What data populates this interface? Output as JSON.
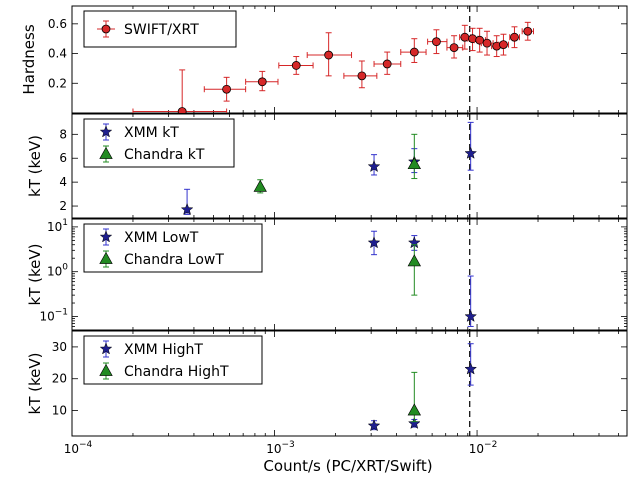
{
  "figure": {
    "xlabel": "Count/s (PC/XRT/Swift)",
    "x_range": [
      0.0001,
      0.055
    ],
    "x_scale": "log",
    "x_ticks": [
      {
        "value": 0.0001,
        "base": "10",
        "exp": "−4"
      },
      {
        "value": 0.001,
        "base": "10",
        "exp": "−3"
      },
      {
        "value": 0.01,
        "base": "10",
        "exp": "−2"
      }
    ],
    "vline_x": 0.0092,
    "colors": {
      "swift": "#d62728",
      "xmm": "#1f1f8f",
      "xmm_err": "#3333cc",
      "chandra": "#228b22",
      "axis": "#000000"
    }
  },
  "chart_data": [
    {
      "type": "scatter",
      "ylabel": "Hardness",
      "yscale": "linear",
      "ylim": [
        0.0,
        0.72
      ],
      "yticks": [
        "0.2",
        "0.4",
        "0.6"
      ],
      "ytick_values": [
        0.2,
        0.4,
        0.6
      ],
      "legend_position": "top-left",
      "series": [
        {
          "name": "SWIFT/XRT",
          "marker": "circle",
          "color_key": "swift",
          "points": [
            {
              "x": 0.00035,
              "y": 0.01,
              "xlo": 0.0002,
              "xhi": 0.00058,
              "ylo": 0.01,
              "yhi": 0.29
            },
            {
              "x": 0.00058,
              "y": 0.16,
              "xlo": 0.00045,
              "xhi": 0.00072,
              "ylo": 0.08,
              "yhi": 0.24
            },
            {
              "x": 0.00087,
              "y": 0.21,
              "xlo": 0.00072,
              "xhi": 0.00104,
              "ylo": 0.15,
              "yhi": 0.28
            },
            {
              "x": 0.00128,
              "y": 0.32,
              "xlo": 0.00105,
              "xhi": 0.00155,
              "ylo": 0.26,
              "yhi": 0.38
            },
            {
              "x": 0.00185,
              "y": 0.39,
              "xlo": 0.00145,
              "xhi": 0.0024,
              "ylo": 0.25,
              "yhi": 0.54
            },
            {
              "x": 0.0027,
              "y": 0.25,
              "xlo": 0.0022,
              "xhi": 0.0032,
              "ylo": 0.17,
              "yhi": 0.35
            },
            {
              "x": 0.0036,
              "y": 0.33,
              "xlo": 0.0031,
              "xhi": 0.0042,
              "ylo": 0.26,
              "yhi": 0.41
            },
            {
              "x": 0.0049,
              "y": 0.41,
              "xlo": 0.0042,
              "xhi": 0.0056,
              "ylo": 0.34,
              "yhi": 0.5
            },
            {
              "x": 0.0063,
              "y": 0.48,
              "xlo": 0.0057,
              "xhi": 0.0071,
              "ylo": 0.4,
              "yhi": 0.56
            },
            {
              "x": 0.0077,
              "y": 0.44,
              "xlo": 0.0071,
              "xhi": 0.0085,
              "ylo": 0.37,
              "yhi": 0.52
            },
            {
              "x": 0.0087,
              "y": 0.51,
              "xlo": 0.0082,
              "xhi": 0.0093,
              "ylo": 0.43,
              "yhi": 0.59
            },
            {
              "x": 0.0095,
              "y": 0.5,
              "xlo": 0.009,
              "xhi": 0.0101,
              "ylo": 0.42,
              "yhi": 0.57
            },
            {
              "x": 0.0103,
              "y": 0.49,
              "xlo": 0.0097,
              "xhi": 0.011,
              "ylo": 0.41,
              "yhi": 0.57
            },
            {
              "x": 0.0112,
              "y": 0.47,
              "xlo": 0.0105,
              "xhi": 0.012,
              "ylo": 0.39,
              "yhi": 0.55
            },
            {
              "x": 0.0125,
              "y": 0.45,
              "xlo": 0.0118,
              "xhi": 0.0133,
              "ylo": 0.38,
              "yhi": 0.52
            },
            {
              "x": 0.0135,
              "y": 0.46,
              "xlo": 0.0128,
              "xhi": 0.0143,
              "ylo": 0.39,
              "yhi": 0.53
            },
            {
              "x": 0.0153,
              "y": 0.51,
              "xlo": 0.0145,
              "xhi": 0.0162,
              "ylo": 0.44,
              "yhi": 0.58
            },
            {
              "x": 0.0178,
              "y": 0.55,
              "xlo": 0.0167,
              "xhi": 0.019,
              "ylo": 0.49,
              "yhi": 0.61
            }
          ]
        }
      ]
    },
    {
      "type": "scatter",
      "ylabel": "kT (keV)",
      "yscale": "linear",
      "ylim": [
        1.0,
        9.7
      ],
      "yticks": [
        "2",
        "4",
        "6",
        "8"
      ],
      "ytick_values": [
        2,
        4,
        6,
        8
      ],
      "legend_position": "top-left",
      "series": [
        {
          "name": "XMM kT",
          "marker": "star",
          "color_key": "xmm",
          "points": [
            {
              "x": 0.00037,
              "y": 1.7,
              "ylo": 1.3,
              "yhi": 3.4
            },
            {
              "x": 0.0031,
              "y": 5.3,
              "ylo": 4.6,
              "yhi": 6.3
            },
            {
              "x": 0.0049,
              "y": 5.7,
              "ylo": 4.8,
              "yhi": 6.8
            },
            {
              "x": 0.0093,
              "y": 6.4,
              "ylo": 5.0,
              "yhi": 9.0
            }
          ]
        },
        {
          "name": "Chandra kT",
          "marker": "triangle",
          "color_key": "chandra",
          "points": [
            {
              "x": 0.00085,
              "y": 3.6,
              "ylo": 3.1,
              "yhi": 4.2
            },
            {
              "x": 0.0049,
              "y": 5.5,
              "ylo": 4.3,
              "yhi": 8.0
            }
          ]
        }
      ]
    },
    {
      "type": "scatter",
      "ylabel": "kT (keV)",
      "yscale": "log",
      "ylim": [
        0.05,
        15
      ],
      "yticks": [
        {
          "value": 0.1,
          "base": "10",
          "exp": "−1"
        },
        {
          "value": 1,
          "base": "10",
          "exp": "0"
        },
        {
          "value": 10,
          "base": "10",
          "exp": "1"
        }
      ],
      "legend_position": "top-left",
      "series": [
        {
          "name": "XMM LowT",
          "marker": "star",
          "color_key": "xmm",
          "points": [
            {
              "x": 0.0031,
              "y": 4.4,
              "ylo": 2.4,
              "yhi": 8.0
            },
            {
              "x": 0.0049,
              "y": 4.4,
              "ylo": 3.0,
              "yhi": 6.4
            },
            {
              "x": 0.0093,
              "y": 0.1,
              "ylo": 0.06,
              "yhi": 0.8
            }
          ]
        },
        {
          "name": "Chandra LowT",
          "marker": "triangle",
          "color_key": "chandra",
          "points": [
            {
              "x": 0.0049,
              "y": 1.7,
              "ylo": 0.3,
              "yhi": 4.0
            }
          ]
        }
      ]
    },
    {
      "type": "scatter",
      "ylabel": "kT (keV)",
      "yscale": "linear",
      "ylim": [
        2,
        35
      ],
      "yticks": [
        "10",
        "20",
        "30"
      ],
      "ytick_values": [
        10,
        20,
        30
      ],
      "legend_position": "top-left",
      "series": [
        {
          "name": "XMM HighT",
          "marker": "star",
          "color_key": "xmm",
          "points": [
            {
              "x": 0.0031,
              "y": 5.2,
              "ylo": 4.0,
              "yhi": 6.8
            },
            {
              "x": 0.0049,
              "y": 5.9,
              "ylo": 4.8,
              "yhi": 7.2
            },
            {
              "x": 0.0093,
              "y": 23.0,
              "ylo": 18.0,
              "yhi": 31.0
            }
          ]
        },
        {
          "name": "Chandra HighT",
          "marker": "triangle",
          "color_key": "chandra",
          "points": [
            {
              "x": 0.0049,
              "y": 10.0,
              "ylo": 6.5,
              "yhi": 22.0
            }
          ]
        }
      ]
    }
  ]
}
